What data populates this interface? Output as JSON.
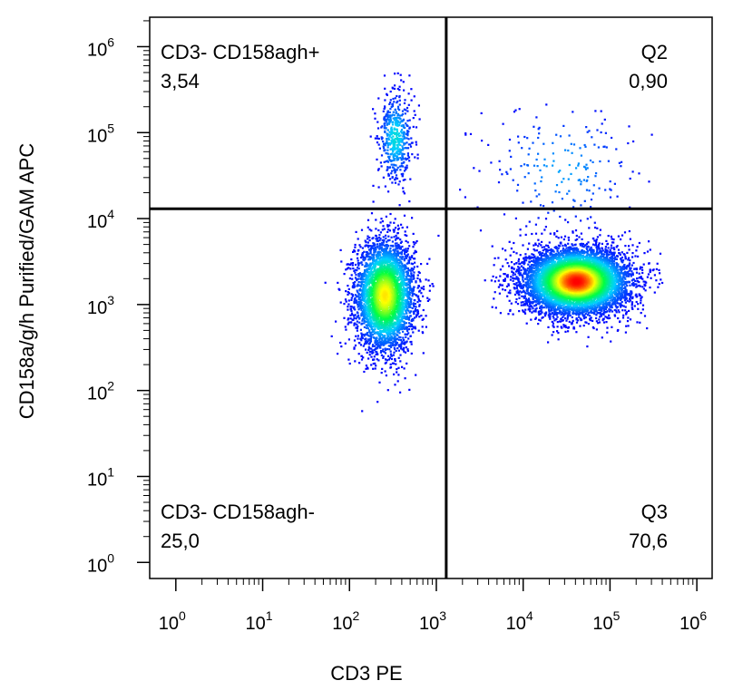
{
  "chart_data": {
    "type": "scatter",
    "title": "",
    "xlabel": "CD3 PE",
    "ylabel": "CD158a/g/h Purified/GAM APC",
    "x_scale": "log",
    "y_scale": "log",
    "xlim": [
      0.5,
      1500000
    ],
    "ylim": [
      0.65,
      2200000
    ],
    "x_ticks": [
      {
        "base": "10",
        "exp": "0"
      },
      {
        "base": "10",
        "exp": "1"
      },
      {
        "base": "10",
        "exp": "2"
      },
      {
        "base": "10",
        "exp": "3"
      },
      {
        "base": "10",
        "exp": "4"
      },
      {
        "base": "10",
        "exp": "5"
      },
      {
        "base": "10",
        "exp": "6"
      }
    ],
    "y_ticks": [
      {
        "base": "10",
        "exp": "0"
      },
      {
        "base": "10",
        "exp": "1"
      },
      {
        "base": "10",
        "exp": "2"
      },
      {
        "base": "10",
        "exp": "3"
      },
      {
        "base": "10",
        "exp": "4"
      },
      {
        "base": "10",
        "exp": "5"
      },
      {
        "base": "10",
        "exp": "6"
      }
    ],
    "gate": {
      "x": 1300,
      "y": 13000
    },
    "quadrants": [
      {
        "name": "CD3- CD158agh+",
        "percent": "3,54",
        "position": "top-left"
      },
      {
        "name": "Q2",
        "percent": "0,90",
        "position": "top-right"
      },
      {
        "name": "CD3- CD158agh-",
        "percent": "25,0",
        "position": "bottom-left"
      },
      {
        "name": "Q3",
        "percent": "70,6",
        "position": "bottom-right"
      }
    ],
    "populations": [
      {
        "center": [
          250,
          1300
        ],
        "spread_log": [
          0.17,
          0.32
        ],
        "count": 4000
      },
      {
        "center": [
          40000,
          1900
        ],
        "spread_log": [
          0.3,
          0.19
        ],
        "count": 7000
      },
      {
        "center": [
          330,
          90000
        ],
        "spread_log": [
          0.1,
          0.27
        ],
        "count": 500
      },
      {
        "center": [
          28000,
          40000
        ],
        "spread_log": [
          0.45,
          0.38
        ],
        "count": 200
      }
    ],
    "color_scale": [
      "#0000ff",
      "#00d0ff",
      "#00ff40",
      "#ffff00",
      "#ff0000"
    ]
  }
}
